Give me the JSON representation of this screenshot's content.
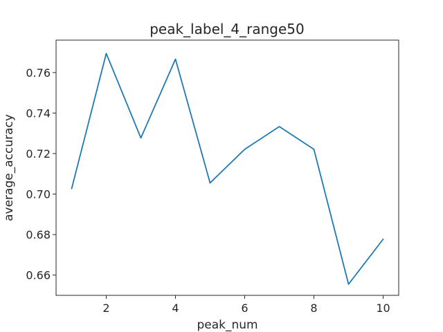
{
  "chart_data": {
    "type": "line",
    "title": "peak_label_4_range50",
    "xlabel": "peak_num",
    "ylabel": "average_accuracy",
    "xlim": [
      0.55,
      10.45
    ],
    "ylim": [
      0.65,
      0.776
    ],
    "xticks": [
      2,
      4,
      6,
      8,
      10
    ],
    "yticks": [
      0.66,
      0.68,
      0.7,
      0.72,
      0.74,
      0.76
    ],
    "ytick_labels": [
      "0.66",
      "0.68",
      "0.70",
      "0.72",
      "0.74",
      "0.76"
    ],
    "grid": false,
    "series": [
      {
        "color": "#1f77b4",
        "x": [
          1,
          2,
          3,
          4,
          5,
          6,
          7,
          8,
          9,
          10
        ],
        "y": [
          0.7027,
          0.7694,
          0.7277,
          0.7666,
          0.7055,
          0.7221,
          0.7333,
          0.7221,
          0.6555,
          0.6777
        ]
      }
    ]
  }
}
